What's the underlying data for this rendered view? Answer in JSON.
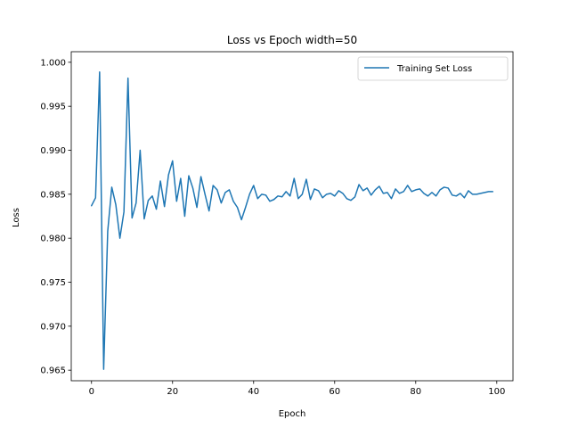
{
  "chart_data": {
    "type": "line",
    "title": "Loss vs Epoch width=50",
    "xlabel": "Epoch",
    "ylabel": "Loss",
    "xlim": [
      -5,
      104
    ],
    "ylim": [
      0.9638,
      1.0012
    ],
    "xticks": [
      0,
      20,
      40,
      60,
      80,
      100
    ],
    "yticks": [
      0.965,
      0.97,
      0.975,
      0.98,
      0.985,
      0.99,
      0.995,
      1.0
    ],
    "ytick_labels": [
      "0.965",
      "0.970",
      "0.975",
      "0.980",
      "0.985",
      "0.990",
      "0.995",
      "1.000"
    ],
    "grid": false,
    "legend_position": "top-right",
    "series": [
      {
        "name": "Training Set Loss",
        "color": "#1f77b4",
        "x": [
          0,
          1,
          2,
          3,
          4,
          5,
          6,
          7,
          8,
          9,
          10,
          11,
          12,
          13,
          14,
          15,
          16,
          17,
          18,
          19,
          20,
          21,
          22,
          23,
          24,
          25,
          26,
          27,
          28,
          29,
          30,
          31,
          32,
          33,
          34,
          35,
          36,
          37,
          38,
          39,
          40,
          41,
          42,
          43,
          44,
          45,
          46,
          47,
          48,
          49,
          50,
          51,
          52,
          53,
          54,
          55,
          56,
          57,
          58,
          59,
          60,
          61,
          62,
          63,
          64,
          65,
          66,
          67,
          68,
          69,
          70,
          71,
          72,
          73,
          74,
          75,
          76,
          77,
          78,
          79,
          80,
          81,
          82,
          83,
          84,
          85,
          86,
          87,
          88,
          89,
          90,
          91,
          92,
          93,
          94,
          95,
          96,
          97,
          98,
          99
        ],
        "values": [
          0.9837,
          0.9846,
          0.9989,
          0.9651,
          0.9808,
          0.9858,
          0.9838,
          0.98,
          0.983,
          0.9982,
          0.9823,
          0.984,
          0.99,
          0.9822,
          0.9843,
          0.9848,
          0.9833,
          0.9865,
          0.9836,
          0.9872,
          0.9888,
          0.9842,
          0.9868,
          0.9825,
          0.9871,
          0.9857,
          0.9835,
          0.987,
          0.985,
          0.9831,
          0.986,
          0.9855,
          0.984,
          0.9852,
          0.9855,
          0.9842,
          0.9835,
          0.9821,
          0.9835,
          0.985,
          0.986,
          0.9845,
          0.985,
          0.9849,
          0.9842,
          0.9844,
          0.9848,
          0.9847,
          0.9853,
          0.9848,
          0.9868,
          0.9845,
          0.985,
          0.9867,
          0.9844,
          0.9856,
          0.9854,
          0.9846,
          0.985,
          0.9851,
          0.9848,
          0.9854,
          0.9851,
          0.9845,
          0.9843,
          0.9847,
          0.9861,
          0.9854,
          0.9857,
          0.9849,
          0.9855,
          0.9859,
          0.9851,
          0.9852,
          0.9845,
          0.9856,
          0.9851,
          0.9853,
          0.986,
          0.9853,
          0.9855,
          0.9856,
          0.9851,
          0.9848,
          0.9852,
          0.9848,
          0.9855,
          0.9858,
          0.9857,
          0.9849,
          0.9848,
          0.9851,
          0.9846,
          0.9854,
          0.985,
          0.985,
          0.9851,
          0.9852,
          0.9853,
          0.9853
        ]
      }
    ]
  }
}
